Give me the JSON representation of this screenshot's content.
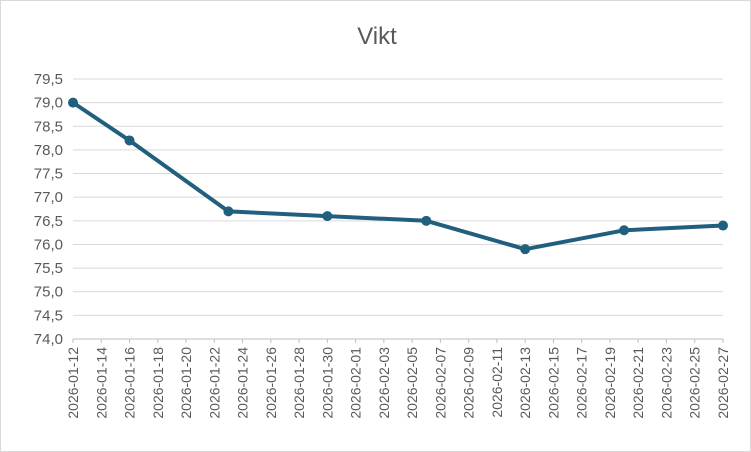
{
  "chart_data": {
    "type": "line",
    "title": "Vikt",
    "xlabel": "",
    "ylabel": "",
    "x_axis": {
      "type": "date",
      "range": [
        "2026-01-12",
        "2026-02-27"
      ],
      "tick_labels": [
        "2026-01-12",
        "2026-01-14",
        "2026-01-16",
        "2026-01-18",
        "2026-01-20",
        "2026-01-22",
        "2026-01-24",
        "2026-01-26",
        "2026-01-28",
        "2026-01-30",
        "2026-02-01",
        "2026-02-03",
        "2026-02-05",
        "2026-02-07",
        "2026-02-09",
        "2026-02-11",
        "2026-02-13",
        "2026-02-15",
        "2026-02-17",
        "2026-02-19",
        "2026-02-21",
        "2026-02-23",
        "2026-02-25",
        "2026-02-27"
      ]
    },
    "y_axis": {
      "range": [
        74.0,
        79.5
      ],
      "tick_labels": [
        "74,0",
        "74,5",
        "75,0",
        "75,5",
        "76,0",
        "76,5",
        "77,0",
        "77,5",
        "78,0",
        "78,5",
        "79,0",
        "79,5"
      ]
    },
    "grid": true,
    "legend": "none",
    "series": [
      {
        "color": "#215f7e",
        "points": [
          {
            "x": "2026-01-12",
            "y": 79.0
          },
          {
            "x": "2026-01-16",
            "y": 78.2
          },
          {
            "x": "2026-01-23",
            "y": 76.7
          },
          {
            "x": "2026-01-30",
            "y": 76.6
          },
          {
            "x": "2026-02-06",
            "y": 76.5
          },
          {
            "x": "2026-02-13",
            "y": 75.9
          },
          {
            "x": "2026-02-20",
            "y": 76.3
          },
          {
            "x": "2026-02-27",
            "y": 76.4
          }
        ]
      }
    ]
  }
}
